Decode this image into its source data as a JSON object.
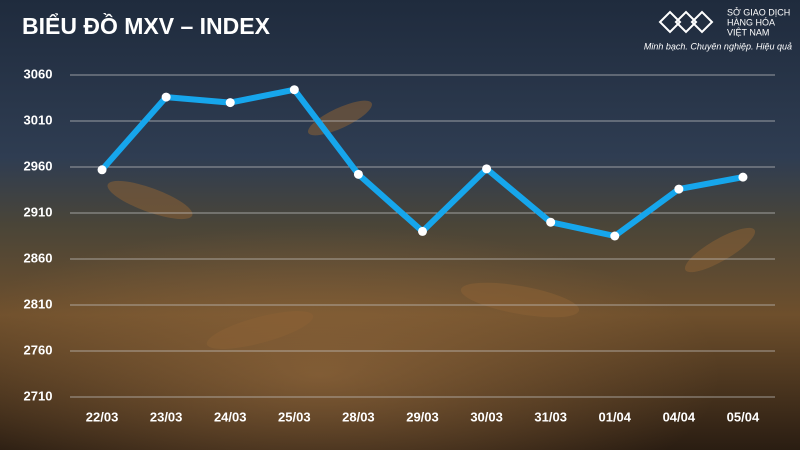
{
  "chart_data": {
    "type": "line",
    "title": "BIỂU ĐỒ MXV – INDEX",
    "brand": [
      "SỞ GIAO DỊCH",
      "HÀNG HÓA",
      "VIỆT NAM"
    ],
    "tagline": "Minh bạch. Chuyên nghiệp. Hiệu quả",
    "categories": [
      "22/03",
      "23/03",
      "24/03",
      "25/03",
      "28/03",
      "29/03",
      "30/03",
      "31/03",
      "01/04",
      "04/04",
      "05/04"
    ],
    "values": [
      2957,
      3036,
      3030,
      3044,
      2952,
      2890,
      2958,
      2900,
      2885,
      2936,
      2949
    ],
    "color": "#16a6ec",
    "ylim": [
      2710,
      3060
    ],
    "yticks": [
      2710,
      2760,
      2810,
      2860,
      2910,
      2960,
      3010,
      3060
    ],
    "grid": true
  }
}
